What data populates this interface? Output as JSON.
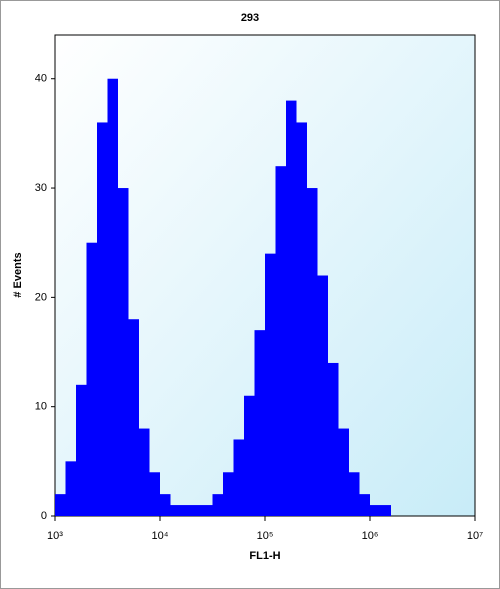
{
  "chart_data": {
    "type": "histogram",
    "title": "293",
    "x_label": "FL1-H",
    "y_label": "# Events",
    "x_scale": "log",
    "color": "#0000ff",
    "bins": [
      1000,
      1259,
      1585,
      1995,
      2512,
      3162,
      3981,
      5012,
      6310,
      7943,
      10000,
      12589,
      15849,
      19953,
      25119,
      31623,
      39811,
      50119,
      63096,
      79433,
      100000,
      125893,
      158489,
      199526,
      251189,
      316228,
      398107,
      501187,
      630957,
      794328,
      1000000,
      1258925,
      1584893,
      1995262,
      2511886,
      3162278,
      3981072,
      5011872,
      6309573,
      7943282,
      10000000
    ],
    "counts": [
      2,
      5,
      12,
      25,
      36,
      40,
      30,
      18,
      8,
      4,
      2,
      1,
      1,
      1,
      1,
      2,
      4,
      7,
      11,
      17,
      24,
      32,
      38,
      36,
      30,
      22,
      14,
      8,
      4,
      2,
      1,
      1,
      0,
      0,
      0,
      0,
      0,
      0,
      0,
      0
    ],
    "xlim": [
      1000,
      10000000
    ],
    "xticks": [
      {
        "value": 1000,
        "label": "10³"
      },
      {
        "value": 10000,
        "label": "10⁴"
      },
      {
        "value": 100000,
        "label": "10⁵"
      },
      {
        "value": 1000000,
        "label": "10⁶"
      },
      {
        "value": 10000000,
        "label": "10⁷"
      }
    ],
    "ylim": [
      0,
      44
    ],
    "yticks": [
      0,
      10,
      20,
      30,
      40
    ]
  }
}
